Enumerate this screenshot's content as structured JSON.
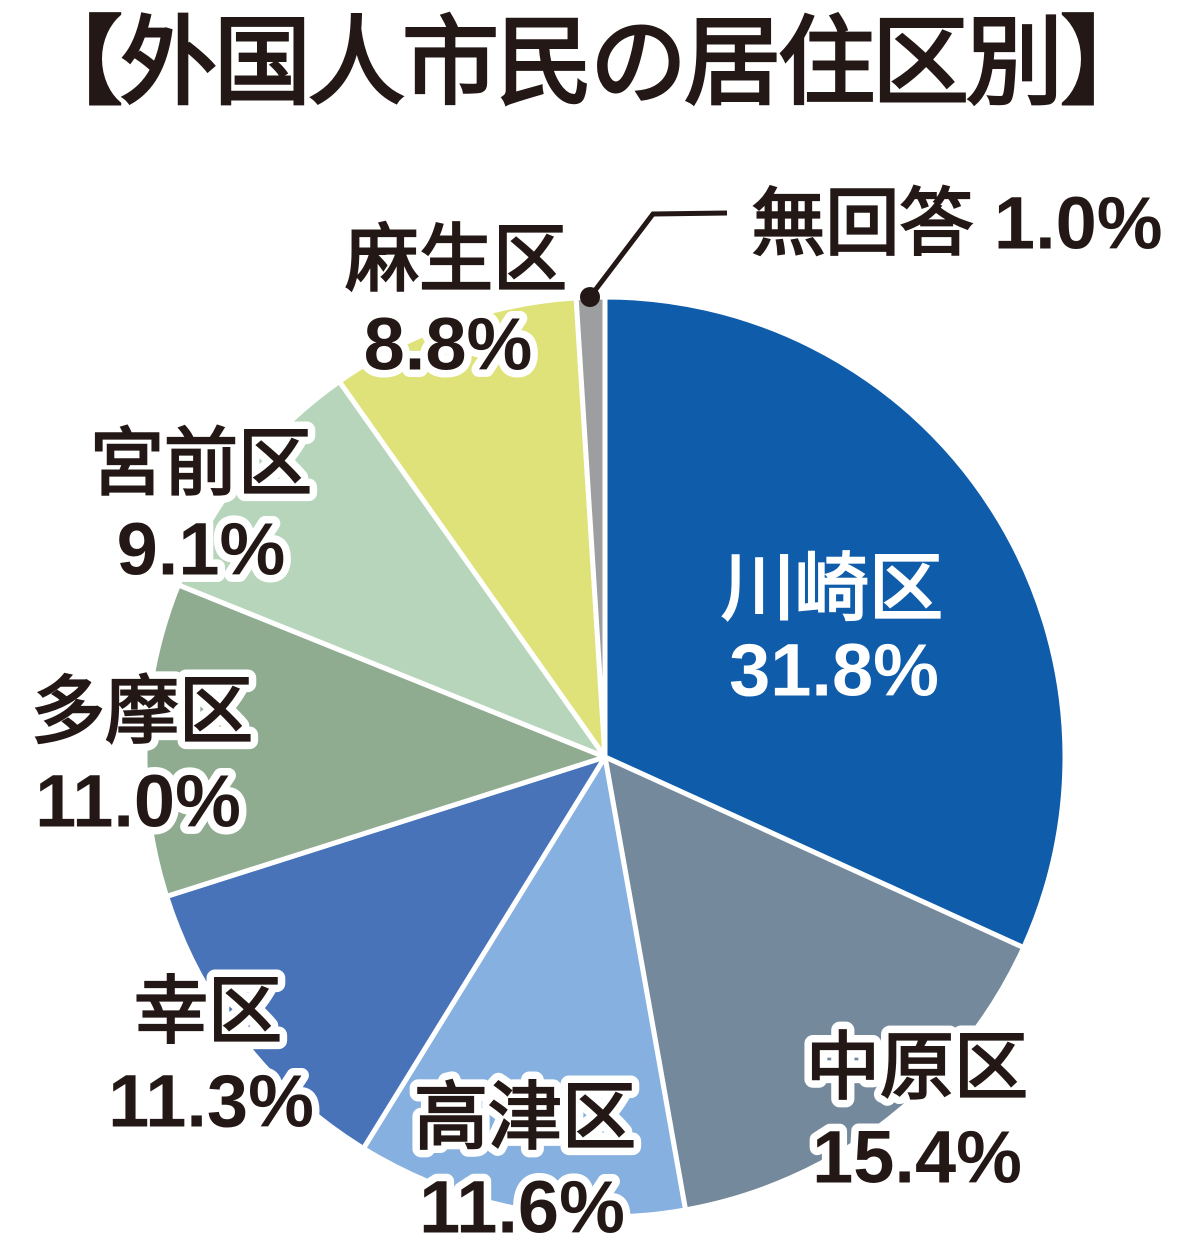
{
  "page": {
    "background": "#ffffff",
    "text_color": "#231815"
  },
  "chart_data": {
    "type": "pie",
    "title": "【外国人市民の居住区別】",
    "direction": "clockwise",
    "start_angle_deg": 0,
    "grid": false,
    "legend_position": "labels-around-pie",
    "total_percent": 100.0,
    "slices": [
      {
        "key": "kawasaki-ward",
        "label": "川崎区",
        "value": 31.8,
        "percent_label": "31.8%",
        "color": "#0e5caa",
        "label_placement": "inside"
      },
      {
        "key": "nakahara-ward",
        "label": "中原区",
        "value": 15.4,
        "percent_label": "15.4%",
        "color": "#75899c",
        "label_placement": "outside"
      },
      {
        "key": "takatsu-ward",
        "label": "高津区",
        "value": 11.6,
        "percent_label": "11.6%",
        "color": "#86b0df",
        "label_placement": "outside"
      },
      {
        "key": "saiwai-ward",
        "label": "幸区",
        "value": 11.3,
        "percent_label": "11.3%",
        "color": "#4873b8",
        "label_placement": "outside"
      },
      {
        "key": "tama-ward",
        "label": "多摩区",
        "value": 11.0,
        "percent_label": "11.0%",
        "color": "#8fac90",
        "label_placement": "outside"
      },
      {
        "key": "miyamae-ward",
        "label": "宮前区",
        "value": 9.1,
        "percent_label": "9.1%",
        "color": "#b7d5ba",
        "label_placement": "outside"
      },
      {
        "key": "asao-ward",
        "label": "麻生区",
        "value": 8.8,
        "percent_label": "8.8%",
        "color": "#dee279",
        "label_placement": "outside"
      },
      {
        "key": "no-answer",
        "label": "無回答",
        "value": 1.0,
        "percent_label": "1.0%",
        "color": "#9d9e9f",
        "label_placement": "callout"
      }
    ],
    "callout": {
      "slice_key": "no-answer",
      "line_color": "#231815"
    }
  }
}
